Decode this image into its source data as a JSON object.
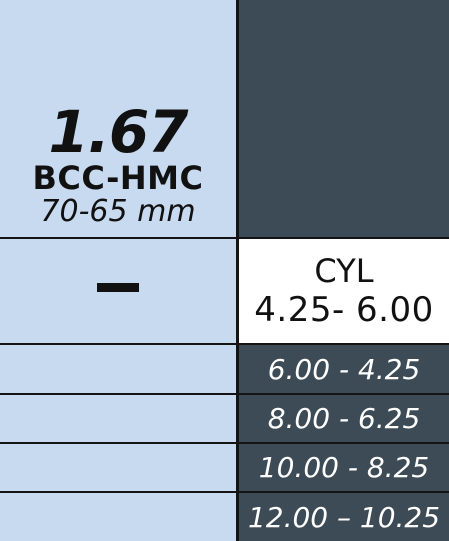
{
  "lens": {
    "index": "1.67",
    "coating": "BCC-HMC",
    "diameter": "70-65 mm"
  },
  "sph_label": "–",
  "cyl": {
    "title": "CYL",
    "range": "4.25- 6.00"
  },
  "sph_ranges": [
    "6.00 - 4.25",
    "8.00 - 6.25",
    "10.00 - 8.25",
    "12.00 – 10.25"
  ],
  "colors": {
    "left_fill": "#c8daf0",
    "right_dark_fill": "#3c4b55",
    "border": "#141414"
  }
}
